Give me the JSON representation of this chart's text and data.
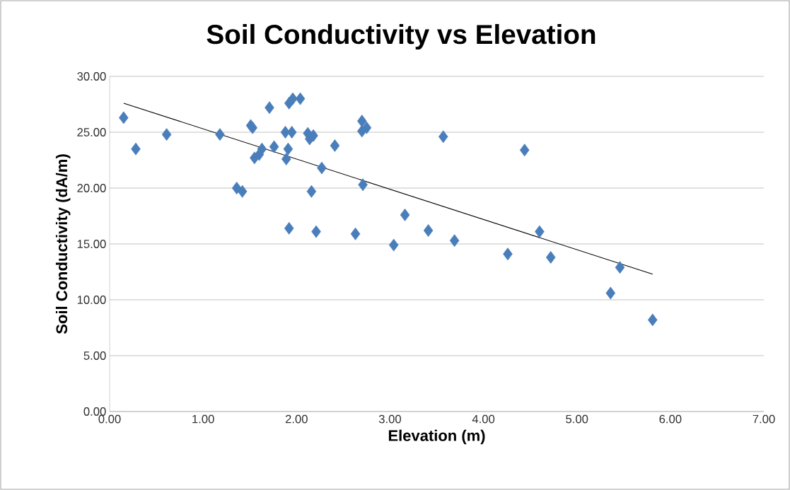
{
  "chart_data": {
    "type": "scatter",
    "title": "Soil Conductivity vs Elevation",
    "xlabel": "Elevation (m)",
    "ylabel": "Soil Conductivity (dA/m)",
    "xlim": [
      0,
      7
    ],
    "ylim": [
      0,
      30
    ],
    "xticks": [
      {
        "value": 0,
        "label": "0.00"
      },
      {
        "value": 1,
        "label": "1.00"
      },
      {
        "value": 2,
        "label": "2.00"
      },
      {
        "value": 3,
        "label": "3.00"
      },
      {
        "value": 4,
        "label": "4.00"
      },
      {
        "value": 5,
        "label": "5.00"
      },
      {
        "value": 6,
        "label": "6.00"
      },
      {
        "value": 7,
        "label": "7.00"
      }
    ],
    "yticks": [
      {
        "value": 0,
        "label": "0.00"
      },
      {
        "value": 5,
        "label": "5.00"
      },
      {
        "value": 10,
        "label": "10.00"
      },
      {
        "value": 15,
        "label": "15.00"
      },
      {
        "value": 20,
        "label": "20.00"
      },
      {
        "value": 25,
        "label": "25.00"
      },
      {
        "value": 30,
        "label": "30.00"
      }
    ],
    "grid": "y",
    "series": [
      {
        "color": "#4a7ebb",
        "marker": "diamond",
        "x": [
          0.15,
          0.28,
          0.61,
          1.18,
          1.51,
          1.53,
          1.36,
          1.42,
          1.71,
          1.55,
          1.6,
          1.63,
          1.76,
          1.88,
          1.89,
          1.91,
          1.92,
          1.96,
          2.04,
          1.95,
          1.92,
          2.12,
          2.14,
          2.18,
          2.16,
          2.21,
          2.27,
          2.41,
          2.63,
          2.7,
          2.7,
          2.75,
          2.71,
          3.04,
          3.16,
          3.41,
          3.57,
          3.69,
          4.26,
          4.44,
          4.6,
          4.72,
          5.36,
          5.46,
          5.81
        ],
        "values": [
          26.3,
          23.5,
          24.8,
          24.8,
          25.6,
          25.4,
          20.0,
          19.7,
          27.2,
          22.7,
          23.0,
          23.5,
          23.7,
          25.0,
          22.6,
          23.5,
          27.6,
          28.0,
          28.0,
          25.0,
          16.4,
          24.9,
          24.4,
          24.7,
          19.7,
          16.1,
          21.8,
          23.8,
          15.9,
          26.0,
          25.1,
          25.4,
          20.3,
          14.9,
          17.6,
          16.2,
          24.6,
          15.3,
          14.1,
          23.4,
          16.1,
          13.8,
          10.6,
          12.9,
          8.2
        ]
      },
      {
        "type": "line",
        "color": "#000000",
        "marker": "none",
        "line_style": "solid",
        "x": [
          0.15,
          5.81
        ],
        "values": [
          27.6,
          12.3
        ]
      }
    ]
  }
}
